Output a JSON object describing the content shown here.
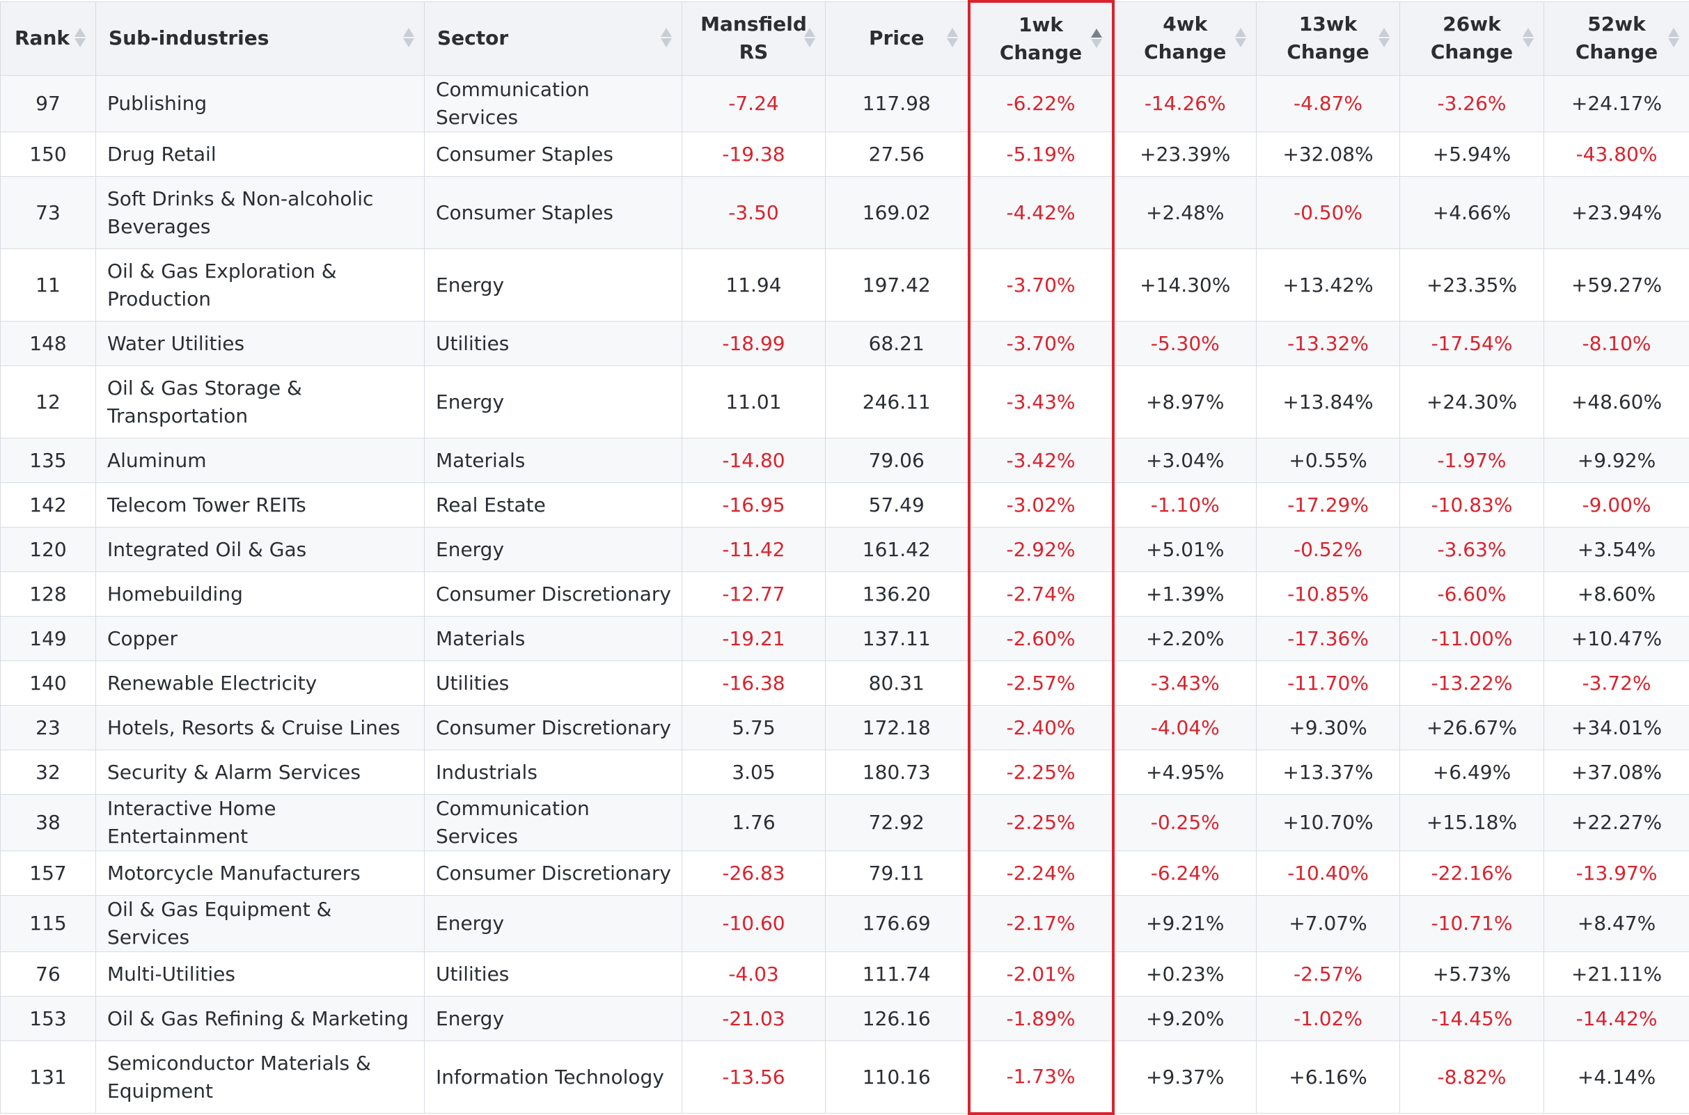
{
  "colors": {
    "negative": "#d9232d",
    "header_bg": "#f1f3f6",
    "highlight": "#d9232d"
  },
  "columns": [
    {
      "key": "rank",
      "label": "Rank",
      "sortable": true
    },
    {
      "key": "sub",
      "label": "Sub-industries",
      "sortable": true
    },
    {
      "key": "sector",
      "label": "Sector",
      "sortable": true
    },
    {
      "key": "rs",
      "label": "Mansfield\nRS",
      "sortable": true
    },
    {
      "key": "price",
      "label": "Price",
      "sortable": true
    },
    {
      "key": "w1",
      "label": "1wk\nChange",
      "sortable": true,
      "sorted": "asc"
    },
    {
      "key": "w4",
      "label": "4wk\nChange",
      "sortable": true
    },
    {
      "key": "w13",
      "label": "13wk\nChange",
      "sortable": true
    },
    {
      "key": "w26",
      "label": "26wk\nChange",
      "sortable": true
    },
    {
      "key": "w52",
      "label": "52wk\nChange",
      "sortable": true
    }
  ],
  "rows": [
    [
      "97",
      "Publishing",
      "Communication Services",
      "-7.24",
      "117.98",
      "-6.22%",
      "-14.26%",
      "-4.87%",
      "-3.26%",
      "+24.17%"
    ],
    [
      "150",
      "Drug Retail",
      "Consumer Staples",
      "-19.38",
      "27.56",
      "-5.19%",
      "+23.39%",
      "+32.08%",
      "+5.94%",
      "-43.80%"
    ],
    [
      "73",
      "Soft Drinks & Non-alcoholic Beverages",
      "Consumer Staples",
      "-3.50",
      "169.02",
      "-4.42%",
      "+2.48%",
      "-0.50%",
      "+4.66%",
      "+23.94%"
    ],
    [
      "11",
      "Oil & Gas Exploration & Production",
      "Energy",
      "11.94",
      "197.42",
      "-3.70%",
      "+14.30%",
      "+13.42%",
      "+23.35%",
      "+59.27%"
    ],
    [
      "148",
      "Water Utilities",
      "Utilities",
      "-18.99",
      "68.21",
      "-3.70%",
      "-5.30%",
      "-13.32%",
      "-17.54%",
      "-8.10%"
    ],
    [
      "12",
      "Oil & Gas Storage & Transportation",
      "Energy",
      "11.01",
      "246.11",
      "-3.43%",
      "+8.97%",
      "+13.84%",
      "+24.30%",
      "+48.60%"
    ],
    [
      "135",
      "Aluminum",
      "Materials",
      "-14.80",
      "79.06",
      "-3.42%",
      "+3.04%",
      "+0.55%",
      "-1.97%",
      "+9.92%"
    ],
    [
      "142",
      "Telecom Tower REITs",
      "Real Estate",
      "-16.95",
      "57.49",
      "-3.02%",
      "-1.10%",
      "-17.29%",
      "-10.83%",
      "-9.00%"
    ],
    [
      "120",
      "Integrated Oil & Gas",
      "Energy",
      "-11.42",
      "161.42",
      "-2.92%",
      "+5.01%",
      "-0.52%",
      "-3.63%",
      "+3.54%"
    ],
    [
      "128",
      "Homebuilding",
      "Consumer Discretionary",
      "-12.77",
      "136.20",
      "-2.74%",
      "+1.39%",
      "-10.85%",
      "-6.60%",
      "+8.60%"
    ],
    [
      "149",
      "Copper",
      "Materials",
      "-19.21",
      "137.11",
      "-2.60%",
      "+2.20%",
      "-17.36%",
      "-11.00%",
      "+10.47%"
    ],
    [
      "140",
      "Renewable Electricity",
      "Utilities",
      "-16.38",
      "80.31",
      "-2.57%",
      "-3.43%",
      "-11.70%",
      "-13.22%",
      "-3.72%"
    ],
    [
      "23",
      "Hotels, Resorts & Cruise Lines",
      "Consumer Discretionary",
      "5.75",
      "172.18",
      "-2.40%",
      "-4.04%",
      "+9.30%",
      "+26.67%",
      "+34.01%"
    ],
    [
      "32",
      "Security & Alarm Services",
      "Industrials",
      "3.05",
      "180.73",
      "-2.25%",
      "+4.95%",
      "+13.37%",
      "+6.49%",
      "+37.08%"
    ],
    [
      "38",
      "Interactive Home Entertainment",
      "Communication Services",
      "1.76",
      "72.92",
      "-2.25%",
      "-0.25%",
      "+10.70%",
      "+15.18%",
      "+22.27%"
    ],
    [
      "157",
      "Motorcycle Manufacturers",
      "Consumer Discretionary",
      "-26.83",
      "79.11",
      "-2.24%",
      "-6.24%",
      "-10.40%",
      "-22.16%",
      "-13.97%"
    ],
    [
      "115",
      "Oil & Gas Equipment & Services",
      "Energy",
      "-10.60",
      "176.69",
      "-2.17%",
      "+9.21%",
      "+7.07%",
      "-10.71%",
      "+8.47%"
    ],
    [
      "76",
      "Multi-Utilities",
      "Utilities",
      "-4.03",
      "111.74",
      "-2.01%",
      "+0.23%",
      "-2.57%",
      "+5.73%",
      "+21.11%"
    ],
    [
      "153",
      "Oil & Gas Refining & Marketing",
      "Energy",
      "-21.03",
      "126.16",
      "-1.89%",
      "+9.20%",
      "-1.02%",
      "-14.45%",
      "-14.42%"
    ],
    [
      "131",
      "Semiconductor Materials & Equipment",
      "Information Technology",
      "-13.56",
      "110.16",
      "-1.73%",
      "+9.37%",
      "+6.16%",
      "-8.82%",
      "+4.14%"
    ]
  ]
}
